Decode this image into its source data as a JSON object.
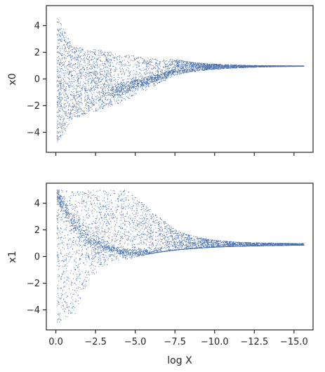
{
  "chart_data": [
    {
      "type": "scatter",
      "xlabel": "",
      "ylabel": "x0",
      "xlim": [
        0.6,
        -16.2
      ],
      "ylim": [
        -5.5,
        5.5
      ],
      "x_axis_inverted": true,
      "xticks": [
        0.0,
        -2.5,
        -5.0,
        -7.5,
        -10.0,
        -12.5,
        -15.0
      ],
      "xtick_labels_visible": false,
      "yticks": [
        -4,
        -2,
        0,
        2,
        4
      ],
      "ytick_labels": [
        "−4",
        "−2",
        "0",
        "2",
        "4"
      ],
      "marker_color": "#4c72b0",
      "grid": false,
      "legend": "none",
      "shape_description": "dense sideways funnel: wide spread (-5 to 5) near log X = 0, converging toward x0 ≈ 1 as log X decreases to about -15.5"
    },
    {
      "type": "scatter",
      "xlabel": "log X",
      "ylabel": "x1",
      "xlim": [
        0.6,
        -16.2
      ],
      "ylim": [
        -5.5,
        5.5
      ],
      "x_axis_inverted": true,
      "xticks": [
        0.0,
        -2.5,
        -5.0,
        -7.5,
        -10.0,
        -12.5,
        -15.0
      ],
      "xtick_labels": [
        "0.0",
        "−2.5",
        "−5.0",
        "−7.5",
        "−10.0",
        "−12.5",
        "−15.0"
      ],
      "yticks": [
        -4,
        -2,
        0,
        2,
        4
      ],
      "ytick_labels": [
        "−4",
        "−2",
        "0",
        "2",
        "4"
      ],
      "marker_color": "#4c72b0",
      "grid": false,
      "legend": "none",
      "shape_description": "crescent-shaped cloud: wide spread near log X = 0, curved band dipping near x1 ≈ 0 around log X = -5, converging toward x1 ≈ 1 by log X ≈ -15.5"
    }
  ]
}
